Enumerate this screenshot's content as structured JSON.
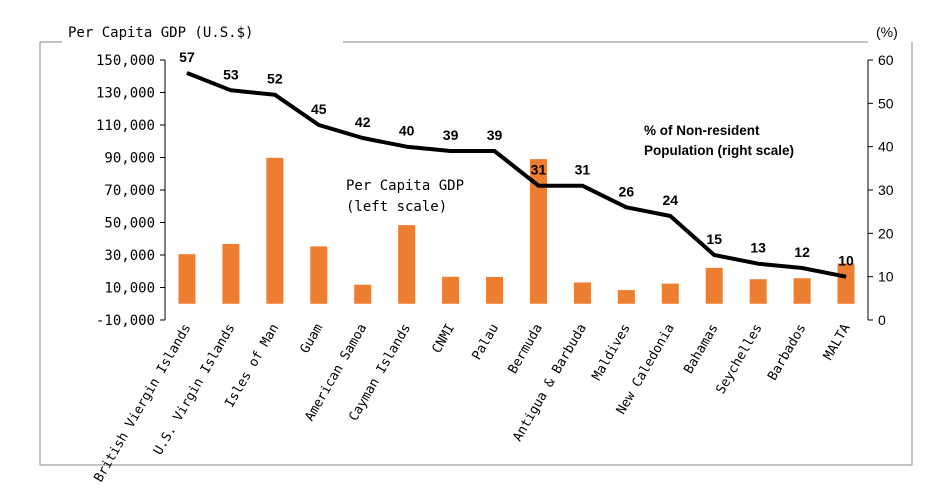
{
  "chart_data": {
    "type": "bar+line",
    "categories": [
      "British Viergin Islands",
      "U.S. Virgin Islands",
      "Isles of Man",
      "Guam",
      "American Samoa",
      "Cayman Islands",
      "CNMI",
      "Palau",
      "Bermuda",
      "Antigua & Barbuda",
      "Maldives",
      "New Caledonia",
      "Bahamas",
      "Seychelles",
      "Barbados",
      "MALTA"
    ],
    "series": [
      {
        "name": "Per Capita GDP (left scale)",
        "type": "bar",
        "axis": "left",
        "color": "#ED7D31",
        "values": [
          30500,
          36800,
          89800,
          35300,
          11700,
          48400,
          16600,
          16500,
          89000,
          13100,
          8400,
          12400,
          22100,
          15100,
          15700,
          24800
        ]
      },
      {
        "name": "% of Non-resident Population (right scale)",
        "type": "line",
        "axis": "right",
        "color": "#000000",
        "values": [
          57,
          53,
          52,
          45,
          42,
          40,
          39,
          39,
          31,
          31,
          26,
          24,
          15,
          13,
          12,
          10
        ]
      }
    ],
    "left_axis": {
      "title": "Per Capita GDP (U.S.$)",
      "ticks": [
        "150,000",
        "130,000",
        "110,000",
        "90,000",
        "70,000",
        "50,000",
        "30,000",
        "10,000",
        "-10,000"
      ],
      "ylim": [
        -10000,
        150000
      ],
      "negative_tick_color": "#FF0000"
    },
    "right_axis": {
      "title": "(%)",
      "ticks": [
        "60",
        "50",
        "40",
        "30",
        "20",
        "10",
        "0"
      ],
      "ylim": [
        0,
        60
      ]
    },
    "data_labels": [
      "57",
      "53",
      "52",
      "45",
      "42",
      "40",
      "39",
      "39",
      "31",
      "31",
      "26",
      "24",
      "15",
      "13",
      "12",
      "10"
    ],
    "annotations": {
      "bar_label_line1": "Per Capita GDP",
      "bar_label_line2": "(left scale)",
      "line_label_line1": "% of Non-resident",
      "line_label_line2": "Population (right scale)"
    },
    "grid": false,
    "legend": "none"
  }
}
